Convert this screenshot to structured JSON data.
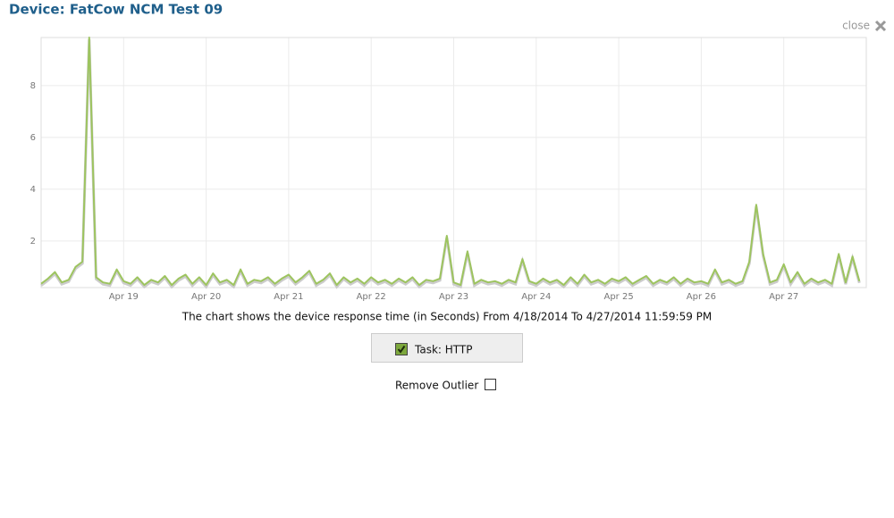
{
  "header": {
    "title": "Device: FatCow NCM Test 09",
    "close": "close"
  },
  "chart_data": {
    "type": "line",
    "categories": [
      null,
      null,
      null,
      null,
      null,
      null,
      null,
      null,
      null,
      null,
      null,
      null,
      "Apr 19",
      null,
      null,
      null,
      null,
      null,
      null,
      null,
      null,
      null,
      null,
      null,
      "Apr 20",
      null,
      null,
      null,
      null,
      null,
      null,
      null,
      null,
      null,
      null,
      null,
      "Apr 21",
      null,
      null,
      null,
      null,
      null,
      null,
      null,
      null,
      null,
      null,
      null,
      "Apr 22",
      null,
      null,
      null,
      null,
      null,
      null,
      null,
      null,
      null,
      null,
      null,
      "Apr 23",
      null,
      null,
      null,
      null,
      null,
      null,
      null,
      null,
      null,
      null,
      null,
      "Apr 24",
      null,
      null,
      null,
      null,
      null,
      null,
      null,
      null,
      null,
      null,
      null,
      "Apr 25",
      null,
      null,
      null,
      null,
      null,
      null,
      null,
      null,
      null,
      null,
      null,
      "Apr 26",
      null,
      null,
      null,
      null,
      null,
      null,
      null,
      null,
      null,
      null,
      null,
      "Apr 27",
      null,
      null,
      null,
      null,
      null,
      null,
      null,
      null,
      null,
      null,
      null
    ],
    "values": [
      0.35,
      0.55,
      0.8,
      0.4,
      0.5,
      1.0,
      1.2,
      9.86,
      0.6,
      0.4,
      0.35,
      0.9,
      0.45,
      0.35,
      0.6,
      0.3,
      0.5,
      0.4,
      0.65,
      0.3,
      0.55,
      0.7,
      0.35,
      0.6,
      0.3,
      0.75,
      0.4,
      0.5,
      0.3,
      0.9,
      0.35,
      0.5,
      0.45,
      0.6,
      0.35,
      0.55,
      0.7,
      0.4,
      0.6,
      0.85,
      0.35,
      0.5,
      0.75,
      0.3,
      0.6,
      0.4,
      0.55,
      0.35,
      0.6,
      0.4,
      0.5,
      0.35,
      0.55,
      0.4,
      0.6,
      0.3,
      0.5,
      0.45,
      0.55,
      2.2,
      0.4,
      0.3,
      1.6,
      0.35,
      0.5,
      0.4,
      0.45,
      0.35,
      0.5,
      0.4,
      1.3,
      0.45,
      0.35,
      0.55,
      0.4,
      0.5,
      0.3,
      0.6,
      0.35,
      0.7,
      0.4,
      0.5,
      0.35,
      0.55,
      0.45,
      0.6,
      0.35,
      0.5,
      0.65,
      0.35,
      0.5,
      0.4,
      0.6,
      0.35,
      0.55,
      0.4,
      0.45,
      0.35,
      0.9,
      0.4,
      0.5,
      0.35,
      0.45,
      1.2,
      3.4,
      1.5,
      0.4,
      0.5,
      1.1,
      0.4,
      0.8,
      0.35,
      0.55,
      0.4,
      0.5,
      0.35,
      1.5,
      0.4,
      1.4,
      0.45
    ],
    "color": "#9dc45f",
    "ylim": [
      0.2,
      9.86
    ],
    "yticks": [
      2,
      4,
      6,
      8
    ],
    "grid": true
  },
  "caption": "The chart shows the device response time (in Seconds) From 4/18/2014 To 4/27/2014 11:59:59 PM",
  "controls": {
    "task": "Task: HTTP",
    "task_checked": true,
    "remove_outlier": "Remove Outlier",
    "remove_outlier_checked": false
  }
}
